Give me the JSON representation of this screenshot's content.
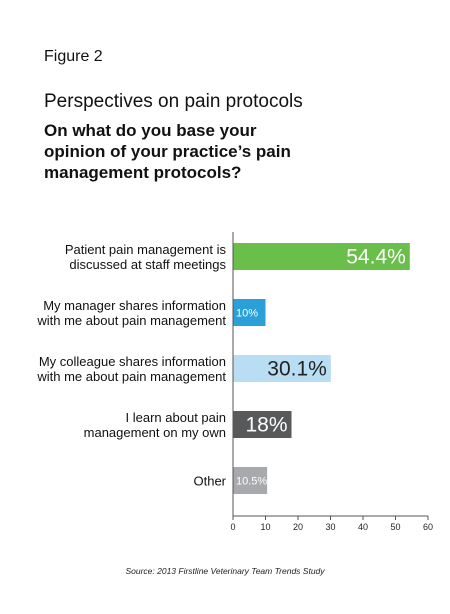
{
  "figure_label": "Figure 2",
  "title": "Perspectives on pain protocols",
  "question_lines": [
    "On what do you base your",
    "opinion of your practice’s pain",
    "management protocols?"
  ],
  "source": "Source: 2013 Firstline Veterinary Team Trends Study",
  "chart_data": {
    "type": "bar",
    "orientation": "horizontal",
    "categories": [
      [
        "Patient pain management is",
        "discussed at staff meetings"
      ],
      [
        "My manager shares information",
        "with me about pain management"
      ],
      [
        "My colleague shares information",
        "with me about pain management"
      ],
      [
        "I learn about pain",
        "management on my own"
      ],
      [
        "Other"
      ]
    ],
    "values": [
      54.4,
      10,
      30.1,
      18,
      10.5
    ],
    "data_labels": [
      "54.4%",
      "10%",
      "30.1%",
      "18%",
      "10.5%"
    ],
    "colors": [
      "#6abf4b",
      "#2a9fd8",
      "#b9ddf3",
      "#58595b",
      "#a7a9ac"
    ],
    "label_colors": [
      "#ffffff",
      "#ffffff",
      "#222222",
      "#ffffff",
      "#ffffff"
    ],
    "xlim": [
      0,
      60
    ],
    "xticks": [
      0,
      10,
      20,
      30,
      40,
      50,
      60
    ],
    "grid": false
  }
}
